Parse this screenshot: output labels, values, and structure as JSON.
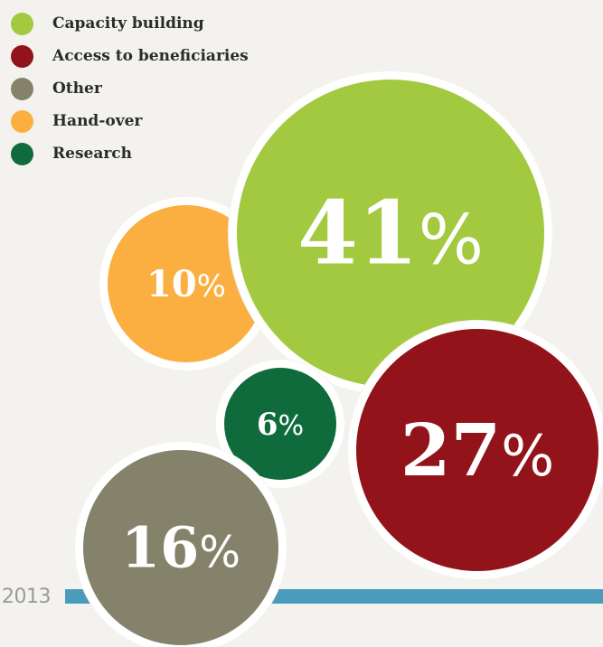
{
  "chart_data": {
    "type": "bubble",
    "title": "",
    "legend_position": "top-left",
    "series": [
      {
        "name": "Capacity building",
        "value": 41,
        "color": "#a2c93f"
      },
      {
        "name": "Access to beneficiaries",
        "value": 27,
        "color": "#921319"
      },
      {
        "name": "Other",
        "value": 16,
        "color": "#85826c"
      },
      {
        "name": "Hand-over",
        "value": 10,
        "color": "#fbaf41"
      },
      {
        "name": "Research",
        "value": 6,
        "color": "#0f6b3c"
      }
    ],
    "value_suffix": "%",
    "year": "2013"
  },
  "accent_color": "#4b9bbb"
}
